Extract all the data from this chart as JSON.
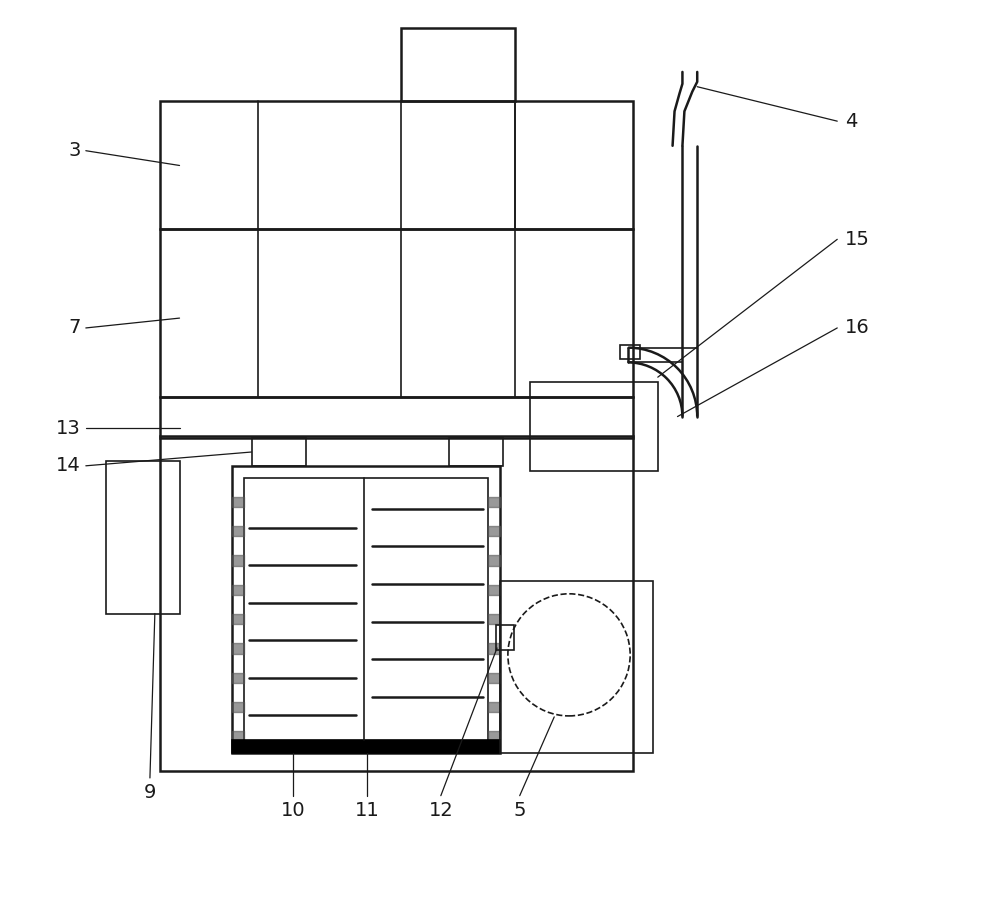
{
  "bg_color": "#ffffff",
  "line_color": "#1a1a1a",
  "lw_thin": 1.2,
  "lw_med": 1.8,
  "lw_thick": 2.5,
  "fig_width": 10.0,
  "fig_height": 9.06,
  "label_fs": 14
}
